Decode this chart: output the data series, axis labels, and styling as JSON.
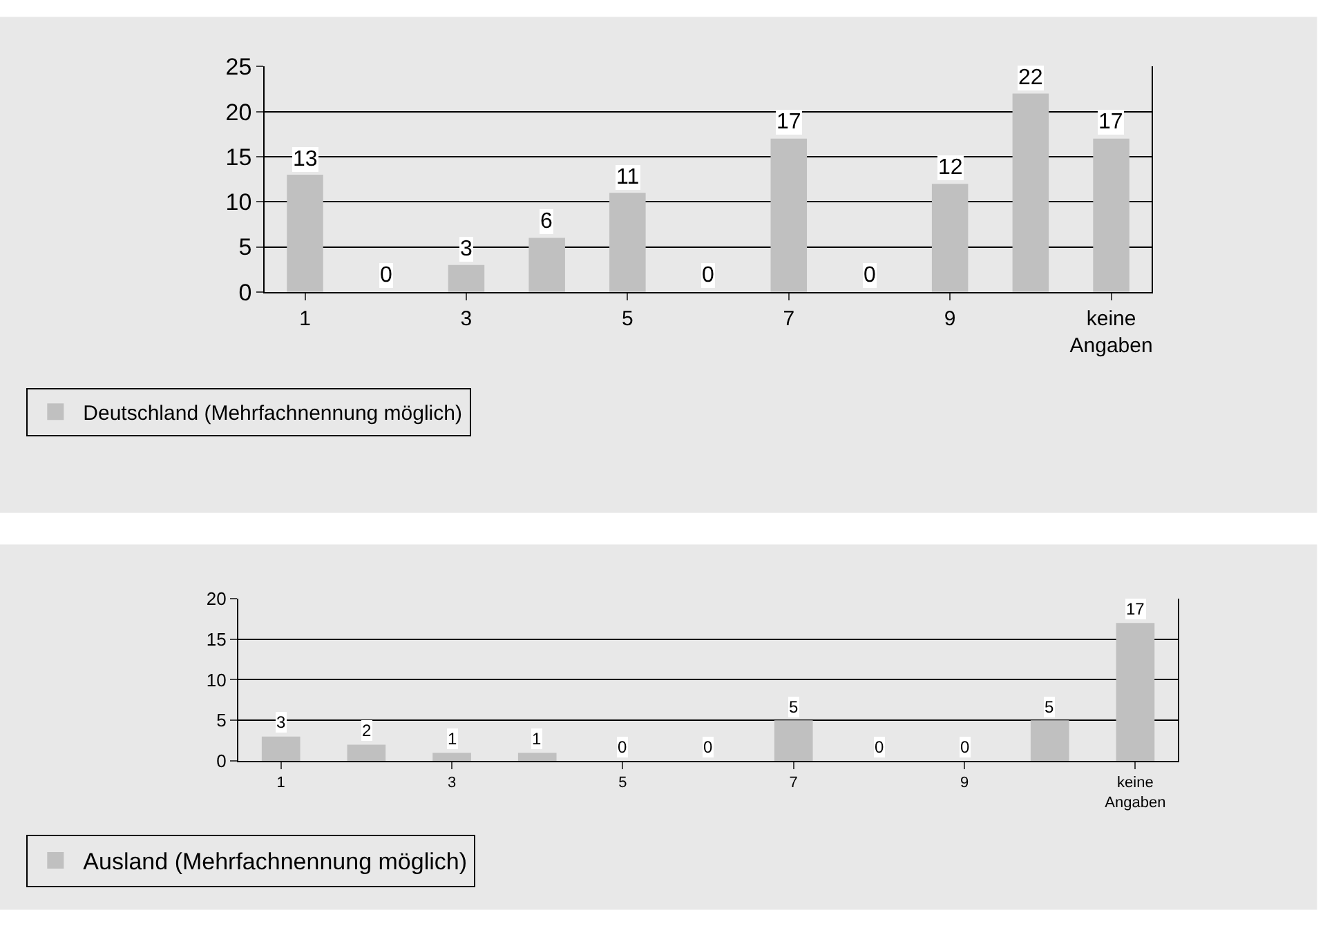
{
  "chart_data": [
    {
      "type": "bar",
      "categories": [
        "1",
        null,
        "3",
        null,
        "5",
        null,
        "7",
        null,
        "9",
        null,
        "keine Angaben"
      ],
      "series": [
        {
          "name": "Deutschland (Mehrfachnennung möglich)",
          "color": "#c0c0c0",
          "values": [
            13,
            0,
            3,
            6,
            11,
            0,
            17,
            0,
            12,
            22,
            17
          ]
        }
      ],
      "ylim": [
        0,
        25
      ],
      "yticks": [
        0,
        5,
        10,
        15,
        20,
        25
      ],
      "grid": "y",
      "data_labels": true,
      "legend": "bottom left"
    },
    {
      "type": "bar",
      "categories": [
        "1",
        null,
        "3",
        null,
        "5",
        null,
        "7",
        null,
        "9",
        null,
        "keine Angaben"
      ],
      "series": [
        {
          "name": "Ausland (Mehrfachnennung möglich)",
          "color": "#c0c0c0",
          "values": [
            3,
            2,
            1,
            1,
            0,
            0,
            5,
            0,
            0,
            5,
            17
          ]
        }
      ],
      "ylim": [
        0,
        20
      ],
      "yticks": [
        0,
        5,
        10,
        15,
        20
      ],
      "grid": "y",
      "data_labels": true,
      "legend": "bottom left"
    }
  ]
}
